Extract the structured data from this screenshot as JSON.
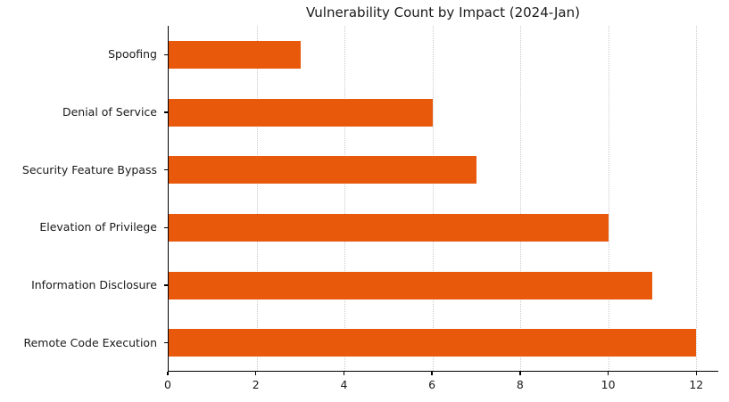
{
  "chart_data": {
    "type": "bar",
    "orientation": "horizontal",
    "title": "Vulnerability Count by Impact (2024-Jan)",
    "categories": [
      "Spoofing",
      "Denial of Service",
      "Security Feature Bypass",
      "Elevation of Privilege",
      "Information Disclosure",
      "Remote Code Execution"
    ],
    "values": [
      3,
      6,
      7,
      10,
      11,
      12
    ],
    "xlabel": "",
    "ylabel": "",
    "x_ticks": [
      0,
      2,
      4,
      6,
      8,
      10,
      12
    ],
    "xlim": [
      0,
      12.5
    ],
    "grid": "vertical-dotted-at-x-ticks",
    "legend": "none",
    "colors": {
      "bar": "#e8590c",
      "grid": "#c9c9c9",
      "axis": "#000000",
      "text": "#1a1a1a",
      "background": "#ffffff"
    }
  }
}
